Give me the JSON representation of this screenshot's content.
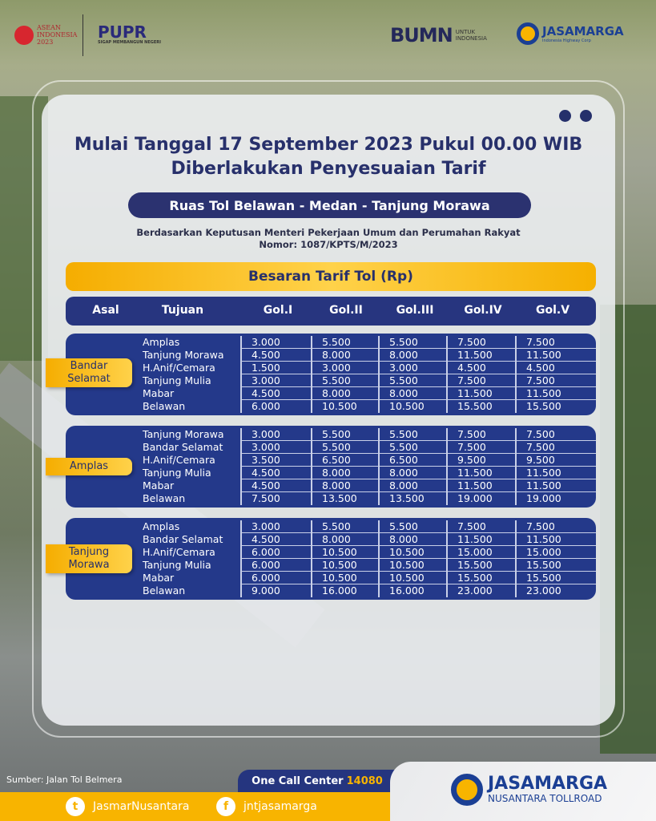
{
  "logos": {
    "asean": "ASEAN INDONESIA 2023",
    "pupr": "PUPR",
    "pupr_tagline": "SIGAP MEMBANGUN NEGERI",
    "bumn": "BUMN",
    "bumn_tagline": "UNTUK INDONESIA",
    "jasamarga": "JASAMARGA",
    "jasamarga_tagline": "Indonesia Highway Corp"
  },
  "title_line1": "Mulai Tanggal 17 September 2023 Pukul 00.00 WIB",
  "title_line2": "Diberlakukan Penyesuaian Tarif",
  "route": "Ruas Tol Belawan - Medan - Tanjung Morawa",
  "basis_line1": "Berdasarkan Keputusan Menteri Pekerjaan Umum dan Perumahan Rakyat",
  "basis_line2": "Nomor: 1087/KPTS/M/2023",
  "table_title": "Besaran Tarif Tol (Rp)",
  "columns": [
    "Asal",
    "Tujuan",
    "Gol.I",
    "Gol.II",
    "Gol.III",
    "Gol.IV",
    "Gol.V"
  ],
  "groups": [
    {
      "origin": "Bandar Selamat",
      "rows": [
        {
          "dest": "Amplas",
          "v": [
            "3.000",
            "5.500",
            "5.500",
            "7.500",
            "7.500"
          ]
        },
        {
          "dest": "Tanjung Morawa",
          "v": [
            "4.500",
            "8.000",
            "8.000",
            "11.500",
            "11.500"
          ]
        },
        {
          "dest": "H.Anif/Cemara",
          "v": [
            "1.500",
            "3.000",
            "3.000",
            "4.500",
            "4.500"
          ]
        },
        {
          "dest": "Tanjung Mulia",
          "v": [
            "3.000",
            "5.500",
            "5.500",
            "7.500",
            "7.500"
          ]
        },
        {
          "dest": "Mabar",
          "v": [
            "4.500",
            "8.000",
            "8.000",
            "11.500",
            "11.500"
          ]
        },
        {
          "dest": "Belawan",
          "v": [
            "6.000",
            "10.500",
            "10.500",
            "15.500",
            "15.500"
          ]
        }
      ]
    },
    {
      "origin": "Amplas",
      "rows": [
        {
          "dest": "Tanjung Morawa",
          "v": [
            "3.000",
            "5.500",
            "5.500",
            "7.500",
            "7.500"
          ]
        },
        {
          "dest": "Bandar Selamat",
          "v": [
            "3.000",
            "5.500",
            "5.500",
            "7.500",
            "7.500"
          ]
        },
        {
          "dest": "H.Anif/Cemara",
          "v": [
            "3.500",
            "6.500",
            "6.500",
            "9.500",
            "9.500"
          ]
        },
        {
          "dest": "Tanjung Mulia",
          "v": [
            "4.500",
            "8.000",
            "8.000",
            "11.500",
            "11.500"
          ]
        },
        {
          "dest": "Mabar",
          "v": [
            "4.500",
            "8.000",
            "8.000",
            "11.500",
            "11.500"
          ]
        },
        {
          "dest": "Belawan",
          "v": [
            "7.500",
            "13.500",
            "13.500",
            "19.000",
            "19.000"
          ]
        }
      ]
    },
    {
      "origin": "Tanjung Morawa",
      "rows": [
        {
          "dest": "Amplas",
          "v": [
            "3.000",
            "5.500",
            "5.500",
            "7.500",
            "7.500"
          ]
        },
        {
          "dest": "Bandar Selamat",
          "v": [
            "4.500",
            "8.000",
            "8.000",
            "11.500",
            "11.500"
          ]
        },
        {
          "dest": "H.Anif/Cemara",
          "v": [
            "6.000",
            "10.500",
            "10.500",
            "15.000",
            "15.000"
          ]
        },
        {
          "dest": "Tanjung Mulia",
          "v": [
            "6.000",
            "10.500",
            "10.500",
            "15.500",
            "15.500"
          ]
        },
        {
          "dest": "Mabar",
          "v": [
            "6.000",
            "10.500",
            "10.500",
            "15.500",
            "15.500"
          ]
        },
        {
          "dest": "Belawan",
          "v": [
            "9.000",
            "16.000",
            "16.000",
            "23.000",
            "23.000"
          ]
        }
      ]
    }
  ],
  "footer": {
    "source": "Sumber: Jalan Tol Belmera",
    "call_label": "One Call Center",
    "call_number": "14080",
    "twitter": "JasmarNusantara",
    "facebook": "jntjasamarga",
    "brand": "JASAMARGA",
    "brand_sub": "NUSANTARA TOLLROAD"
  },
  "colors": {
    "navy": "#24398a",
    "yellow": "#f8b400"
  }
}
